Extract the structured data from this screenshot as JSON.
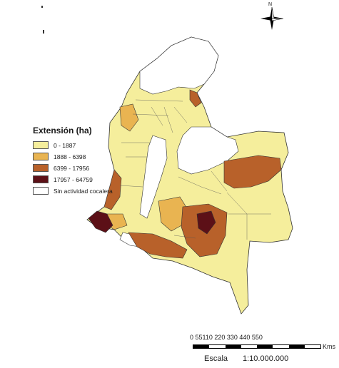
{
  "legend": {
    "title": "Extensión (ha)",
    "items": [
      {
        "label": "0 - 1887",
        "color": "#f5ee9c"
      },
      {
        "label": "1888 - 6398",
        "color": "#e9b451"
      },
      {
        "label": "6399 - 17956",
        "color": "#b8612a"
      },
      {
        "label": "17957 - 64759",
        "color": "#5c1017"
      },
      {
        "label": "Sin actividad cocalera",
        "color": "#ffffff"
      }
    ]
  },
  "north_arrow": {
    "label": "N"
  },
  "scale_bar": {
    "ticks": "0 55110 220 330 440 550",
    "unit": "Kms",
    "word": "Escala",
    "ratio": "1:10.000.000"
  }
}
